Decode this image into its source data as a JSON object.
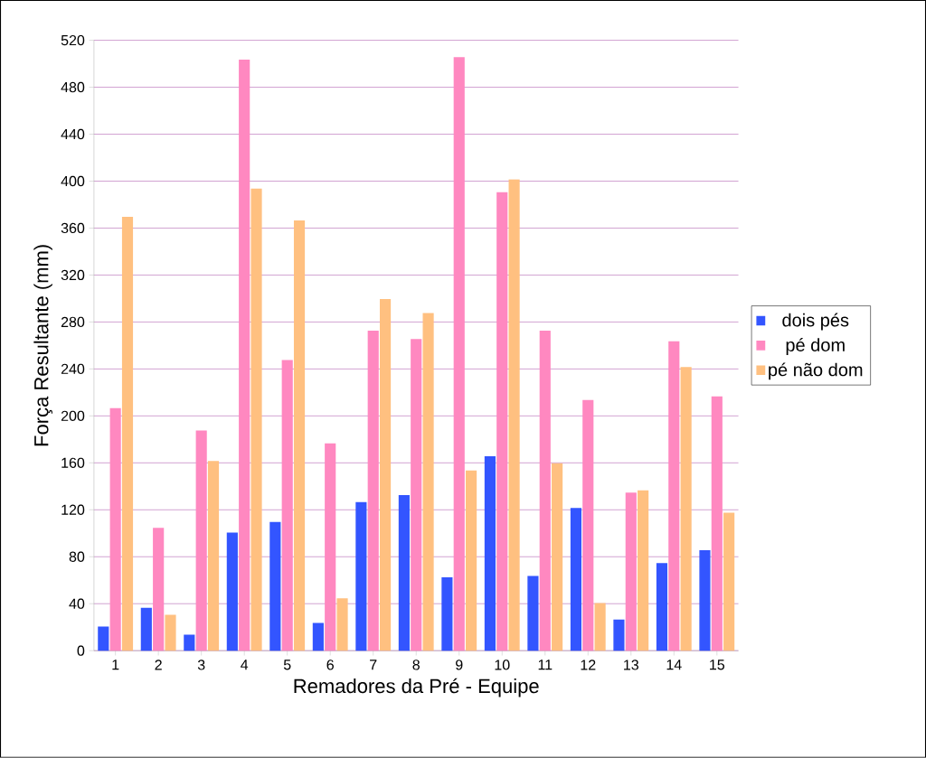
{
  "chart_data": {
    "type": "bar",
    "xlabel": "Remadores da Pré - Equipe",
    "ylabel": "Força Resultante (mm)",
    "categories": [
      "1",
      "2",
      "3",
      "4",
      "5",
      "6",
      "7",
      "8",
      "9",
      "10",
      "11",
      "12",
      "13",
      "14",
      "15"
    ],
    "series": [
      {
        "name": "dois pés",
        "color": "#3355ff",
        "values": [
          20,
          36,
          13,
          100,
          109,
          23,
          126,
          132,
          62,
          165,
          63,
          121,
          26,
          74,
          85
        ]
      },
      {
        "name": "pé dom",
        "color": "#ff88c0",
        "values": [
          206,
          104,
          187,
          503,
          247,
          176,
          272,
          265,
          505,
          390,
          272,
          213,
          134,
          263,
          216
        ]
      },
      {
        "name": "pé não dom",
        "color": "#ffc080",
        "values": [
          369,
          30,
          161,
          393,
          366,
          44,
          299,
          287,
          153,
          401,
          159,
          40,
          136,
          241,
          117
        ]
      }
    ],
    "ylim": [
      0,
      520
    ],
    "yticks": [
      0,
      40,
      80,
      120,
      160,
      200,
      240,
      280,
      320,
      360,
      400,
      440,
      480,
      520
    ],
    "grid": "y",
    "legend": "right"
  }
}
